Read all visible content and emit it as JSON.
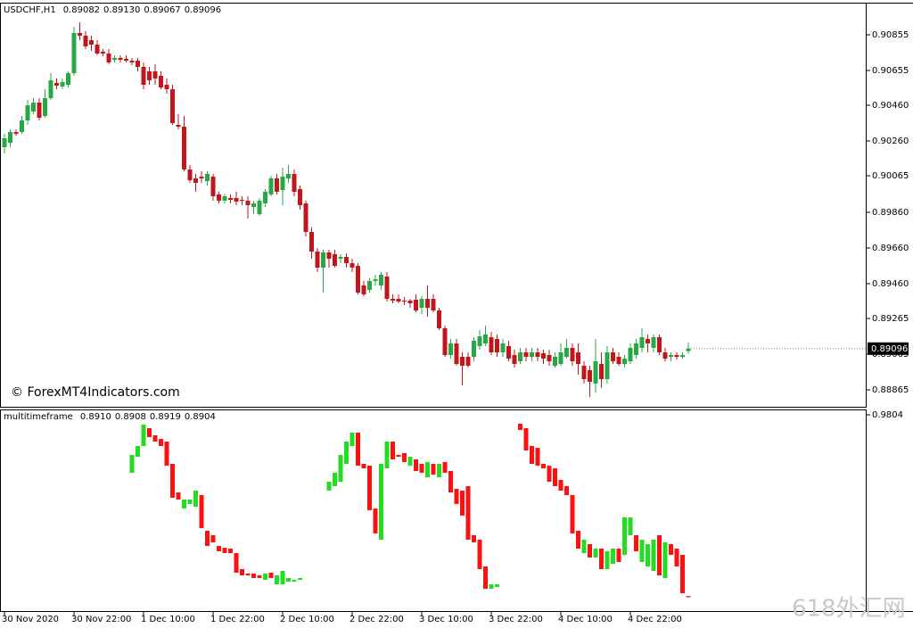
{
  "chart_data": [
    {
      "type": "candlestick",
      "title": "USDCHF,H1",
      "title_values": [
        "0.89082",
        "0.89130",
        "0.89067",
        "0.89096"
      ],
      "watermark": "© ForexMT4Indicators.com",
      "up_color": "#26a844",
      "down_color": "#c0161c",
      "ylim": [
        0.8877,
        0.9103
      ],
      "yticks": [
        {
          "value": 0.90855,
          "label": "0.90855"
        },
        {
          "value": 0.90655,
          "label": "0.90655"
        },
        {
          "value": 0.9046,
          "label": "0.90460"
        },
        {
          "value": 0.9026,
          "label": "0.90260"
        },
        {
          "value": 0.90065,
          "label": "0.90065"
        },
        {
          "value": 0.8986,
          "label": "0.89860"
        },
        {
          "value": 0.8966,
          "label": "0.89660"
        },
        {
          "value": 0.8946,
          "label": "0.89460"
        },
        {
          "value": 0.89265,
          "label": "0.89265"
        },
        {
          "value": 0.89065,
          "label": "0.89065"
        },
        {
          "value": 0.88865,
          "label": "0.88865"
        }
      ],
      "categories": [
        "30 Nov 2020",
        null,
        null,
        null,
        null,
        null,
        null,
        null,
        null,
        null,
        null,
        null,
        "30 Nov 22:00",
        null,
        null,
        null,
        null,
        null,
        null,
        null,
        null,
        null,
        null,
        null,
        "1 Dec 10:00",
        null,
        null,
        null,
        null,
        null,
        null,
        null,
        null,
        null,
        null,
        null,
        "1 Dec 22:00",
        null,
        null,
        null,
        null,
        null,
        null,
        null,
        null,
        null,
        null,
        null,
        "2 Dec 10:00",
        null,
        null,
        null,
        null,
        null,
        null,
        null,
        null,
        null,
        null,
        null,
        "2 Dec 22:00",
        null,
        null,
        null,
        null,
        null,
        null,
        null,
        null,
        null,
        null,
        null,
        "3 Dec 10:00",
        null,
        null,
        null,
        null,
        null,
        null,
        null,
        null,
        null,
        null,
        null,
        "3 Dec 22:00",
        null,
        null,
        null,
        null,
        null,
        null,
        null,
        null,
        null,
        null,
        null,
        "4 Dec 10:00",
        null,
        null,
        null,
        null,
        null,
        null,
        null,
        null,
        null,
        null,
        null,
        "4 Dec 22:00",
        null,
        null,
        null,
        null,
        null,
        null,
        null,
        null,
        null,
        null
      ],
      "candles": [
        [
          0.90225,
          0.903,
          0.9019,
          0.90275
        ],
        [
          0.9025,
          0.90325,
          0.90225,
          0.9031
        ],
        [
          0.9031,
          0.90325,
          0.9029,
          0.903
        ],
        [
          0.9031,
          0.904,
          0.903,
          0.90375
        ],
        [
          0.90375,
          0.9049,
          0.9035,
          0.9046
        ],
        [
          0.90425,
          0.905,
          0.9041,
          0.90475
        ],
        [
          0.90475,
          0.905,
          0.90375,
          0.9039
        ],
        [
          0.904,
          0.9055,
          0.9039,
          0.905
        ],
        [
          0.905,
          0.9064,
          0.9049,
          0.906
        ],
        [
          0.90585,
          0.9061,
          0.9055,
          0.9057
        ],
        [
          0.90565,
          0.9061,
          0.9055,
          0.9059
        ],
        [
          0.90575,
          0.9065,
          0.9056,
          0.9064
        ],
        [
          0.9064,
          0.909,
          0.90625,
          0.90865
        ],
        [
          0.90865,
          0.90925,
          0.90825,
          0.9085
        ],
        [
          0.9085,
          0.90875,
          0.90775,
          0.9079
        ],
        [
          0.90825,
          0.9085,
          0.90765,
          0.908
        ],
        [
          0.908,
          0.90825,
          0.9074,
          0.9075
        ],
        [
          0.9076,
          0.90775,
          0.90735,
          0.9075
        ],
        [
          0.9075,
          0.90775,
          0.9069,
          0.907
        ],
        [
          0.90715,
          0.9074,
          0.907,
          0.90725
        ],
        [
          0.90725,
          0.9074,
          0.907,
          0.90715
        ],
        [
          0.9072,
          0.9074,
          0.907,
          0.9071
        ],
        [
          0.9071,
          0.90725,
          0.90685,
          0.907
        ],
        [
          0.9071,
          0.90725,
          0.9065,
          0.90675
        ],
        [
          0.90675,
          0.907,
          0.9055,
          0.90575
        ],
        [
          0.9065,
          0.90675,
          0.90575,
          0.906
        ],
        [
          0.9065,
          0.9069,
          0.90575,
          0.9061
        ],
        [
          0.90625,
          0.9065,
          0.9055,
          0.9056
        ],
        [
          0.90575,
          0.9061,
          0.90525,
          0.9055
        ],
        [
          0.9055,
          0.90575,
          0.9035,
          0.9036
        ],
        [
          0.9035,
          0.9041,
          0.90325,
          0.9034
        ],
        [
          0.9034,
          0.904,
          0.9009,
          0.901
        ],
        [
          0.901,
          0.90125,
          0.90025,
          0.9004
        ],
        [
          0.9005,
          0.90075,
          0.89975,
          0.90025
        ],
        [
          0.9006,
          0.9009,
          0.90025,
          0.9005
        ],
        [
          0.90035,
          0.9009,
          0.9001,
          0.90075
        ],
        [
          0.9006,
          0.90075,
          0.89925,
          0.8995
        ],
        [
          0.8996,
          0.89975,
          0.8991,
          0.89925
        ],
        [
          0.89925,
          0.89965,
          0.8991,
          0.8995
        ],
        [
          0.8994,
          0.8996,
          0.8991,
          0.8993
        ],
        [
          0.8994,
          0.89975,
          0.899,
          0.8992
        ],
        [
          0.8993,
          0.8995,
          0.899,
          0.89925
        ],
        [
          0.89925,
          0.8995,
          0.89825,
          0.899
        ],
        [
          0.8989,
          0.89925,
          0.8985,
          0.8991
        ],
        [
          0.8985,
          0.8994,
          0.8984,
          0.89925
        ],
        [
          0.8991,
          0.8999,
          0.8989,
          0.89975
        ],
        [
          0.8996,
          0.90065,
          0.8995,
          0.9005
        ],
        [
          0.9005,
          0.90075,
          0.8996,
          0.89975
        ],
        [
          0.89985,
          0.9011,
          0.899,
          0.9006
        ],
        [
          0.9005,
          0.90125,
          0.90025,
          0.90075
        ],
        [
          0.90075,
          0.901,
          0.8995,
          0.89975
        ],
        [
          0.8999,
          0.9001,
          0.89875,
          0.899
        ],
        [
          0.8991,
          0.89925,
          0.89725,
          0.8975
        ],
        [
          0.8975,
          0.89775,
          0.896,
          0.8964
        ],
        [
          0.8964,
          0.8966,
          0.89525,
          0.8955
        ],
        [
          0.8955,
          0.8965,
          0.8941,
          0.89635
        ],
        [
          0.89635,
          0.8965,
          0.8955,
          0.896
        ],
        [
          0.89625,
          0.8965,
          0.8955,
          0.8956
        ],
        [
          0.896,
          0.89625,
          0.89575,
          0.8961
        ],
        [
          0.8961,
          0.8963,
          0.8955,
          0.89575
        ],
        [
          0.89575,
          0.896,
          0.89525,
          0.8955
        ],
        [
          0.8956,
          0.89575,
          0.894,
          0.8941
        ],
        [
          0.8945,
          0.89475,
          0.8939,
          0.894
        ],
        [
          0.89425,
          0.8949,
          0.8941,
          0.89475
        ],
        [
          0.89475,
          0.8951,
          0.8945,
          0.89485
        ],
        [
          0.8945,
          0.89525,
          0.89425,
          0.8951
        ],
        [
          0.895,
          0.89525,
          0.8936,
          0.89375
        ],
        [
          0.89375,
          0.894,
          0.8935,
          0.89365
        ],
        [
          0.89375,
          0.894,
          0.8935,
          0.8936
        ],
        [
          0.89365,
          0.89385,
          0.8934,
          0.8936
        ],
        [
          0.89365,
          0.89375,
          0.89325,
          0.8935
        ],
        [
          0.8937,
          0.894,
          0.893,
          0.8931
        ],
        [
          0.89325,
          0.8939,
          0.8929,
          0.89375
        ],
        [
          0.89375,
          0.8945,
          0.89275,
          0.89325
        ],
        [
          0.89375,
          0.894,
          0.893,
          0.8931
        ],
        [
          0.8931,
          0.89325,
          0.892,
          0.8921
        ],
        [
          0.8921,
          0.89225,
          0.8905,
          0.8906
        ],
        [
          0.8906,
          0.8915,
          0.8904,
          0.89125
        ],
        [
          0.89125,
          0.8915,
          0.89,
          0.8901
        ],
        [
          0.8905,
          0.89075,
          0.8889,
          0.89
        ],
        [
          0.8905,
          0.89075,
          0.8899,
          0.89
        ],
        [
          0.8905,
          0.8916,
          0.89025,
          0.8914
        ],
        [
          0.8911,
          0.892,
          0.8909,
          0.89165
        ],
        [
          0.89125,
          0.89225,
          0.8911,
          0.89175
        ],
        [
          0.8916,
          0.8919,
          0.8906,
          0.89075
        ],
        [
          0.8915,
          0.89175,
          0.8905,
          0.89075
        ],
        [
          0.89075,
          0.8915,
          0.8905,
          0.89125
        ],
        [
          0.8911,
          0.8914,
          0.89025,
          0.8904
        ],
        [
          0.8906,
          0.8909,
          0.8899,
          0.8901
        ],
        [
          0.89025,
          0.891,
          0.8901,
          0.89075
        ],
        [
          0.89075,
          0.891,
          0.89025,
          0.8905
        ],
        [
          0.8905,
          0.891,
          0.89025,
          0.89075
        ],
        [
          0.89075,
          0.891,
          0.89025,
          0.8905
        ],
        [
          0.8907,
          0.8909,
          0.8901,
          0.8904
        ],
        [
          0.8906,
          0.8909,
          0.89,
          0.89025
        ],
        [
          0.89,
          0.89075,
          0.8899,
          0.8905
        ],
        [
          0.8901,
          0.89125,
          0.89,
          0.89075
        ],
        [
          0.8905,
          0.8915,
          0.8904,
          0.891
        ],
        [
          0.891,
          0.89125,
          0.89,
          0.89025
        ],
        [
          0.89075,
          0.89125,
          0.8895,
          0.8901
        ],
        [
          0.89,
          0.89025,
          0.889,
          0.88925
        ],
        [
          0.88975,
          0.89,
          0.88825,
          0.8891
        ],
        [
          0.889,
          0.8915,
          0.8885,
          0.89025
        ],
        [
          0.8901,
          0.89075,
          0.88875,
          0.88925
        ],
        [
          0.88925,
          0.8911,
          0.889,
          0.89075
        ],
        [
          0.89075,
          0.891,
          0.8901,
          0.89025
        ],
        [
          0.8905,
          0.89075,
          0.89,
          0.8901
        ],
        [
          0.8901,
          0.8906,
          0.8899,
          0.8904
        ],
        [
          0.89025,
          0.89125,
          0.8901,
          0.891
        ],
        [
          0.8906,
          0.8915,
          0.8904,
          0.89125
        ],
        [
          0.891,
          0.8921,
          0.89075,
          0.8916
        ],
        [
          0.8915,
          0.89175,
          0.89075,
          0.89125
        ],
        [
          0.891,
          0.89175,
          0.89075,
          0.8916
        ],
        [
          0.8916,
          0.89175,
          0.8906,
          0.89075
        ],
        [
          0.89075,
          0.891,
          0.89025,
          0.8904
        ],
        [
          0.8905,
          0.89075,
          0.89025,
          0.8906
        ],
        [
          0.8906,
          0.89075,
          0.89035,
          0.8905
        ],
        [
          0.8905,
          0.89075,
          0.8904,
          0.8906
        ],
        [
          0.89082,
          0.8913,
          0.89067,
          0.89096
        ]
      ]
    },
    {
      "type": "candlestick",
      "title": "multitimeframe",
      "title_values": [
        "0.8910",
        "0.8908",
        "0.8919",
        "0.8904"
      ],
      "watermark": "618外汇网",
      "up_color": "#22dd22",
      "down_color": "#ff1010",
      "ylim": [
        0.8836,
        0.9826
      ],
      "yticks": [
        0.9804
      ],
      "candles": [
        null,
        null,
        null,
        null,
        null,
        null,
        null,
        null,
        null,
        null,
        null,
        null,
        null,
        null,
        null,
        null,
        null,
        null,
        null,
        null,
        null,
        null,
        [
          0.9518,
          0.9606
        ],
        [
          0.9597,
          0.965
        ],
        [
          0.965,
          0.9756
        ],
        [
          0.9738,
          0.9694
        ],
        [
          0.9703,
          0.9672
        ],
        [
          0.9685,
          0.965
        ],
        [
          0.9672,
          0.9553
        ],
        [
          0.9562,
          0.9395
        ],
        [
          0.9421,
          0.9386
        ],
        [
          0.9342,
          0.9386
        ],
        [
          0.9364,
          0.9386
        ],
        [
          0.9351,
          0.943
        ],
        [
          0.9408,
          0.9245
        ],
        [
          0.9232,
          0.9157
        ],
        [
          0.921,
          0.9175
        ],
        [
          0.9157,
          0.9131
        ],
        [
          0.9148,
          0.9122
        ],
        [
          0.9144,
          0.9122
        ],
        [
          0.9122,
          0.9025
        ],
        [
          0.9043,
          0.9012
        ],
        [
          0.9021,
          0.9012
        ],
        [
          0.9021,
          0.8999
        ],
        [
          0.9012,
          0.8999
        ],
        [
          0.899,
          0.9021
        ],
        [
          0.9025,
          0.8999
        ],
        [
          0.8968,
          0.9012
        ],
        [
          0.8968,
          0.9034
        ],
        [
          0.8981,
          0.8999
        ],
        [
          0.8981,
          0.899
        ],
        [
          0.899,
          0.8999
        ],
        null,
        null,
        null,
        null,
        [
          0.943,
          0.9474
        ],
        [
          0.9452,
          0.9518
        ],
        [
          0.9474,
          0.9606
        ],
        [
          0.9562,
          0.9672
        ],
        [
          0.965,
          0.9716
        ],
        [
          0.9716,
          0.9553
        ],
        [
          0.9562,
          0.954
        ],
        [
          0.9553,
          0.9333
        ],
        [
          0.9342,
          0.9219
        ],
        [
          0.9188,
          0.9562
        ],
        [
          0.954,
          0.9672
        ],
        [
          0.9672,
          0.9584
        ],
        [
          0.9606,
          0.9597
        ],
        [
          0.9615,
          0.9571
        ],
        [
          0.9553,
          0.9597
        ],
        [
          0.9584,
          0.9527
        ],
        [
          0.9562,
          0.9518
        ],
        [
          0.9496,
          0.9571
        ],
        [
          0.9562,
          0.9509
        ],
        [
          0.9496,
          0.9562
        ],
        [
          0.9571,
          0.9518
        ],
        [
          0.9527,
          0.9421
        ],
        [
          0.9439,
          0.9364
        ],
        [
          0.943,
          0.9307
        ],
        [
          0.9452,
          0.9188
        ],
        [
          0.921,
          0.9175
        ],
        [
          0.9188,
          0.9043
        ],
        [
          0.9056,
          0.8946
        ],
        [
          0.8946,
          0.8968
        ],
        [
          0.8955,
          0.8968
        ],
        null,
        null,
        null,
        [
          0.976,
          0.9729
        ],
        [
          0.9738,
          0.9628
        ],
        [
          0.965,
          0.9562
        ],
        [
          0.9641,
          0.9553
        ],
        [
          0.9562,
          0.954
        ],
        [
          0.9553,
          0.9474
        ],
        [
          0.954,
          0.9452
        ],
        [
          0.9483,
          0.943
        ],
        [
          0.9452,
          0.9408
        ],
        [
          0.9408,
          0.9219
        ],
        [
          0.9232,
          0.9144
        ],
        [
          0.9122,
          0.9188
        ],
        [
          0.9166,
          0.91
        ],
        [
          0.91,
          0.9144
        ],
        [
          0.9144,
          0.9043
        ],
        [
          0.9043,
          0.9131
        ],
        [
          0.9069,
          0.9144
        ],
        [
          0.9144,
          0.9078
        ],
        [
          0.9113,
          0.9298
        ],
        [
          0.921,
          0.9298
        ],
        [
          0.921,
          0.9131
        ],
        [
          0.9078,
          0.9188
        ],
        [
          0.9056,
          0.9166
        ],
        [
          0.9034,
          0.9188
        ],
        [
          0.921,
          0.9012
        ],
        [
          0.8999,
          0.9175
        ],
        [
          0.9166,
          0.9113
        ],
        [
          0.9144,
          0.9056
        ],
        [
          0.9113,
          0.8924
        ],
        [
          0.891,
          0.8904
        ]
      ]
    }
  ]
}
